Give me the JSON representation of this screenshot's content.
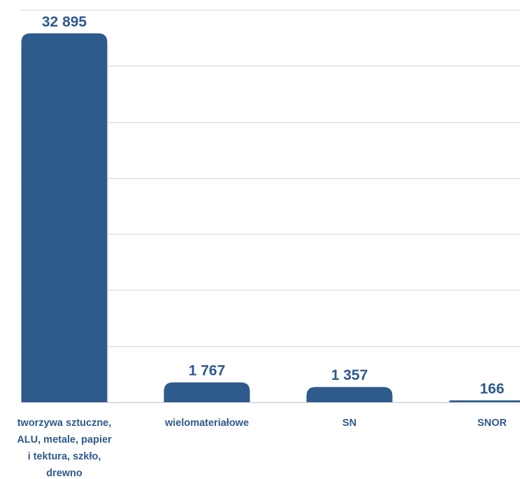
{
  "chart_data": {
    "type": "bar",
    "categories": [
      [
        "tworzywa sztuczne,",
        "ALU, metale, papier",
        "i tektura, szkło,",
        "drewno"
      ],
      [
        "wielomateriałowe"
      ],
      [
        "SN"
      ],
      [
        "SNOR"
      ]
    ],
    "values": [
      32895,
      1767,
      1357,
      166
    ],
    "value_labels": [
      "32 895",
      "1 767",
      "1 357",
      "166"
    ],
    "title": "",
    "xlabel": "",
    "ylabel": "",
    "ylim": [
      0,
      35000
    ],
    "y_gridline_step": 5000,
    "grid": true,
    "legend": "none",
    "bar_color": "#2e5a8c",
    "label_color": "#2e5a8c",
    "grid_color": "#d4d6e6"
  }
}
